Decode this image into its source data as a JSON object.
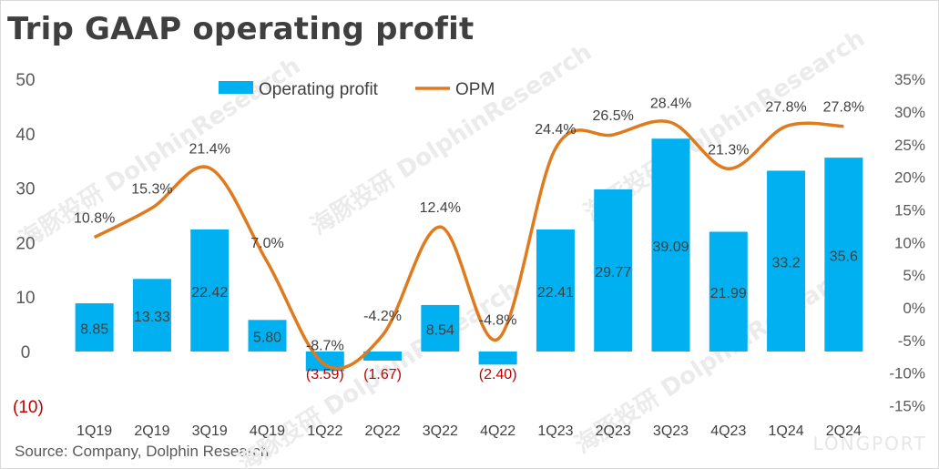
{
  "title": "Trip GAAP operating profit",
  "source": "Source: Company, Dolphin Research",
  "watermark_text": "海豚投研 DolphinResearch",
  "watermark_logo": "LONGPORT",
  "chart_data": {
    "type": "bar+line",
    "categories": [
      "1Q19",
      "2Q19",
      "3Q19",
      "4Q19",
      "1Q22",
      "2Q22",
      "3Q22",
      "4Q22",
      "1Q23",
      "2Q23",
      "3Q23",
      "4Q23",
      "1Q24",
      "2Q24"
    ],
    "series": [
      {
        "name": "Operating profit",
        "type": "bar",
        "axis": "left",
        "color": "#00b0f0",
        "values": [
          8.85,
          13.33,
          22.42,
          5.8,
          -3.59,
          -1.67,
          8.54,
          -2.4,
          22.41,
          29.77,
          39.09,
          21.99,
          33.2,
          35.6
        ],
        "labels": [
          "8.85",
          "13.33",
          "22.42",
          "5.80",
          "(3.59)",
          "(1.67)",
          "8.54",
          "(2.40)",
          "22.41",
          "29.77",
          "39.09",
          "21.99",
          "33.2",
          "35.6"
        ]
      },
      {
        "name": "OPM",
        "type": "line",
        "axis": "right",
        "color": "#e07a1f",
        "values": [
          10.8,
          15.3,
          21.4,
          7.0,
          -8.7,
          -4.2,
          12.4,
          -4.8,
          24.4,
          26.5,
          28.4,
          21.3,
          27.8,
          27.8
        ],
        "labels": [
          "10.8%",
          "15.3%",
          "21.4%",
          "7.0%",
          "-8.7%",
          "-4.2%",
          "12.4%",
          "-4.8%",
          "24.4%",
          "26.5%",
          "28.4%",
          "21.3%",
          "27.8%",
          "27.8%"
        ]
      }
    ],
    "y_left": {
      "ticks": [
        "(10)",
        "0",
        "10",
        "20",
        "30",
        "40",
        "50"
      ],
      "min": -10,
      "max": 50
    },
    "y_right": {
      "ticks": [
        "-15%",
        "-10%",
        "-5%",
        "0%",
        "5%",
        "10%",
        "15%",
        "20%",
        "25%",
        "30%",
        "35%"
      ],
      "min": -15,
      "max": 35
    },
    "legend_position": "top",
    "grid": false
  }
}
